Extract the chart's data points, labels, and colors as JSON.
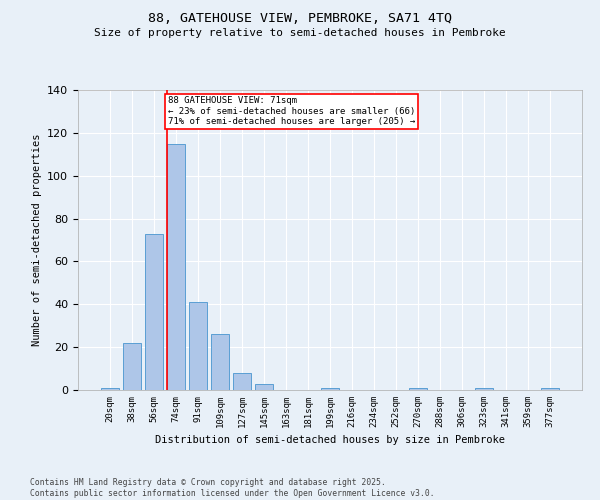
{
  "title1": "88, GATEHOUSE VIEW, PEMBROKE, SA71 4TQ",
  "title2": "Size of property relative to semi-detached houses in Pembroke",
  "xlabel": "Distribution of semi-detached houses by size in Pembroke",
  "ylabel": "Number of semi-detached properties",
  "categories": [
    "20sqm",
    "38sqm",
    "56sqm",
    "74sqm",
    "91sqm",
    "109sqm",
    "127sqm",
    "145sqm",
    "163sqm",
    "181sqm",
    "199sqm",
    "216sqm",
    "234sqm",
    "252sqm",
    "270sqm",
    "288sqm",
    "306sqm",
    "323sqm",
    "341sqm",
    "359sqm",
    "377sqm"
  ],
  "values": [
    1,
    22,
    73,
    115,
    41,
    26,
    8,
    3,
    0,
    0,
    1,
    0,
    0,
    0,
    1,
    0,
    0,
    1,
    0,
    0,
    1
  ],
  "bar_color": "#aec6e8",
  "bar_edge_color": "#5a9fd4",
  "vline_color": "red",
  "annotation_title": "88 GATEHOUSE VIEW: 71sqm",
  "annotation_line2": "← 23% of semi-detached houses are smaller (66)",
  "annotation_line3": "71% of semi-detached houses are larger (205) →",
  "annotation_box_color": "white",
  "annotation_box_edge": "red",
  "ylim": [
    0,
    140
  ],
  "yticks": [
    0,
    20,
    40,
    60,
    80,
    100,
    120,
    140
  ],
  "bg_color": "#e8f0f8",
  "footer1": "Contains HM Land Registry data © Crown copyright and database right 2025.",
  "footer2": "Contains public sector information licensed under the Open Government Licence v3.0."
}
